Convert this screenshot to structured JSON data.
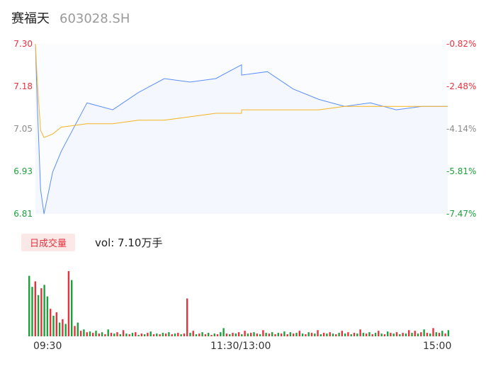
{
  "header": {
    "name": "赛福天",
    "code": "603028.SH"
  },
  "price_axis": {
    "left_ticks": [
      "7.30",
      "7.18",
      "7.05",
      "6.93",
      "6.81"
    ],
    "right_ticks": [
      "-0.82%",
      "-2.48%",
      "-4.14%",
      "-5.81%",
      "-7.47%"
    ]
  },
  "volume": {
    "tab_label": "日成交量",
    "vol_label": "vol: 7.10万手"
  },
  "time_axis": {
    "labels": [
      "09:30",
      "11:30/13:00",
      "15:00"
    ]
  },
  "colors": {
    "price_line": "#5b8ff9",
    "avg_line": "#f5b427",
    "up": "#e6323c",
    "down": "#1ea03c",
    "area_fill": "#f4f7fd"
  },
  "chart_data": [
    {
      "type": "line",
      "title": "",
      "xlabel": "",
      "ylabel": "",
      "ylim": [
        6.81,
        7.3
      ],
      "x": [
        "09:30",
        "09:31",
        "09:33",
        "09:35",
        "09:40",
        "09:45",
        "10:00",
        "10:15",
        "10:30",
        "10:45",
        "11:00",
        "11:15",
        "11:30",
        "13:00",
        "13:15",
        "13:30",
        "13:45",
        "14:00",
        "14:15",
        "14:30",
        "14:45",
        "15:00"
      ],
      "series": [
        {
          "name": "",
          "values": [
            7.3,
            7.14,
            6.88,
            6.81,
            6.93,
            6.99,
            7.13,
            7.11,
            7.16,
            7.2,
            7.19,
            7.2,
            7.24,
            7.21,
            7.22,
            7.17,
            7.14,
            7.12,
            7.13,
            7.11,
            7.12,
            7.12
          ]
        },
        {
          "name": "",
          "values": [
            7.3,
            7.2,
            7.05,
            7.03,
            7.04,
            7.06,
            7.07,
            7.07,
            7.08,
            7.08,
            7.09,
            7.1,
            7.1,
            7.11,
            7.11,
            7.11,
            7.11,
            7.12,
            7.12,
            7.12,
            7.12,
            7.12
          ]
        }
      ]
    },
    {
      "type": "bar",
      "title": "",
      "ylim": [
        0,
        100
      ],
      "values": [
        88,
        72,
        80,
        60,
        70,
        75,
        58,
        40,
        30,
        35,
        20,
        25,
        18,
        95,
        82,
        15,
        20,
        8,
        10,
        6,
        7,
        5,
        8,
        4,
        6,
        3,
        10,
        5,
        4,
        6,
        3,
        9,
        4,
        3,
        5,
        6,
        2,
        4,
        3,
        5,
        7,
        3,
        4,
        3,
        5,
        4,
        6,
        3,
        4,
        5,
        3,
        4,
        55,
        5,
        8,
        3,
        4,
        6,
        3,
        5,
        2,
        4,
        3,
        6,
        12,
        4,
        3,
        5,
        4,
        6,
        3,
        8,
        4,
        5,
        6,
        4,
        3,
        9,
        5,
        4,
        6,
        3,
        5,
        4,
        7,
        3,
        6,
        4,
        5,
        8,
        4,
        3,
        6,
        5,
        4,
        9,
        3,
        5,
        4,
        6,
        4,
        3,
        5,
        8,
        4,
        6,
        3,
        5,
        4,
        10,
        5,
        4,
        6,
        3,
        5,
        8,
        4,
        3,
        7,
        5,
        4,
        6,
        3,
        5,
        4,
        9,
        5,
        8,
        4,
        6,
        10,
        5,
        4,
        12,
        6,
        5,
        8,
        4,
        9
      ],
      "colors": [
        "down",
        "down",
        "up",
        "down",
        "up",
        "down",
        "down",
        "up",
        "down",
        "up",
        "down",
        "up",
        "down",
        "up",
        "down",
        "up",
        "down",
        "up",
        "down",
        "up",
        "down",
        "up",
        "down",
        "up",
        "down",
        "up",
        "down",
        "up",
        "down",
        "up",
        "down",
        "up",
        "down",
        "up",
        "down",
        "up",
        "down",
        "up",
        "down",
        "up",
        "down",
        "up",
        "down",
        "up",
        "down",
        "up",
        "down",
        "up",
        "down",
        "up",
        "down",
        "up",
        "up",
        "down",
        "up",
        "down",
        "up",
        "down",
        "up",
        "down",
        "up",
        "down",
        "up",
        "down",
        "down",
        "up",
        "down",
        "up",
        "down",
        "up",
        "down",
        "up",
        "down",
        "up",
        "down",
        "up",
        "down",
        "up",
        "down",
        "up",
        "down",
        "up",
        "down",
        "up",
        "down",
        "up",
        "down",
        "up",
        "down",
        "up",
        "down",
        "up",
        "down",
        "up",
        "down",
        "up",
        "down",
        "up",
        "down",
        "up",
        "down",
        "up",
        "down",
        "up",
        "down",
        "up",
        "down",
        "up",
        "down",
        "up",
        "down",
        "up",
        "down",
        "up",
        "down",
        "up",
        "down",
        "up",
        "down",
        "up",
        "down",
        "up",
        "down",
        "up",
        "down",
        "up",
        "down",
        "up",
        "down",
        "up",
        "down",
        "up",
        "down",
        "up",
        "down",
        "up",
        "down",
        "up",
        "down"
      ]
    }
  ]
}
